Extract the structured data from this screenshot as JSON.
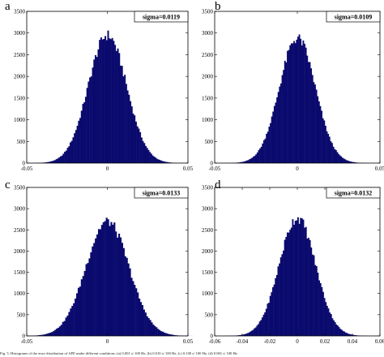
{
  "chart_data": [
    {
      "type": "bar",
      "panel_letter": "a",
      "annotation": "sigma=0.0119",
      "sigma": 0.0119,
      "mean": 0.0,
      "peak": 2950,
      "xlim": [
        -0.05,
        0.05
      ],
      "ylim": [
        0,
        3500
      ],
      "xticks": [
        -0.05,
        0,
        0.05
      ],
      "xtick_labels": [
        "-0.05",
        "0",
        "0.05"
      ],
      "yticks": [
        0,
        500,
        1000,
        1500,
        2000,
        2500,
        3000,
        3500
      ],
      "ytick_labels": [
        "0",
        "500",
        "1000",
        "1500",
        "2000",
        "2500",
        "3000",
        "3500"
      ],
      "bar_color": "#0a0a6e",
      "grid": false
    },
    {
      "type": "bar",
      "panel_letter": "b",
      "annotation": "sigma=0.0109",
      "sigma": 0.0109,
      "mean": 0.0,
      "peak": 2880,
      "xlim": [
        -0.05,
        0.05
      ],
      "ylim": [
        0,
        3500
      ],
      "xticks": [
        -0.05,
        0,
        0.05
      ],
      "xtick_labels": [
        "-0.05",
        "0",
        "0.05"
      ],
      "yticks": [
        0,
        500,
        1000,
        1500,
        2000,
        2500,
        3000,
        3500
      ],
      "ytick_labels": [
        "0",
        "500",
        "1000",
        "1500",
        "2000",
        "2500",
        "3000",
        "3500"
      ],
      "bar_color": "#0a0a6e",
      "grid": false
    },
    {
      "type": "bar",
      "panel_letter": "c",
      "annotation": "sigma=0.0133",
      "sigma": 0.0133,
      "mean": 0.0,
      "peak": 2700,
      "xlim": [
        -0.05,
        0.05
      ],
      "ylim": [
        0,
        3500
      ],
      "xticks": [
        -0.05,
        0,
        0.05
      ],
      "xtick_labels": [
        "-0.05",
        "0",
        "0.05"
      ],
      "yticks": [
        0,
        500,
        1000,
        1500,
        2000,
        2500,
        3000,
        3500
      ],
      "ytick_labels": [
        "0",
        "500",
        "1000",
        "1500",
        "2000",
        "2500",
        "3000",
        "3500"
      ],
      "bar_color": "#0a0a6e",
      "grid": false
    },
    {
      "type": "bar",
      "panel_letter": "d",
      "annotation": "sigma=0.0132",
      "sigma": 0.0132,
      "mean": 0.0,
      "peak": 2780,
      "xlim": [
        -0.06,
        0.06
      ],
      "ylim": [
        0,
        3500
      ],
      "xticks": [
        -0.06,
        -0.04,
        -0.02,
        0,
        0.02,
        0.04,
        0.06
      ],
      "xtick_labels": [
        "-0.06",
        "-0.04",
        "-0.02",
        "0",
        "0.02",
        "0.04",
        "0.06"
      ],
      "yticks": [
        0,
        500,
        1000,
        1500,
        2000,
        2500,
        3000,
        3500
      ],
      "ytick_labels": [
        "0",
        "500",
        "1000",
        "1500",
        "2000",
        "2500",
        "3000",
        "3500"
      ],
      "bar_color": "#0a0a6e",
      "grid": false
    }
  ],
  "caption": "Fig. 5. Histograms of the error distribution of APE under different conditions: (a) 0.001 s/ 100 Hz, (b) 0.010 s/ 100 Hz, (c) 0.100 s/ 100 Hz, (d) 0.001 s/ 100 Hz"
}
